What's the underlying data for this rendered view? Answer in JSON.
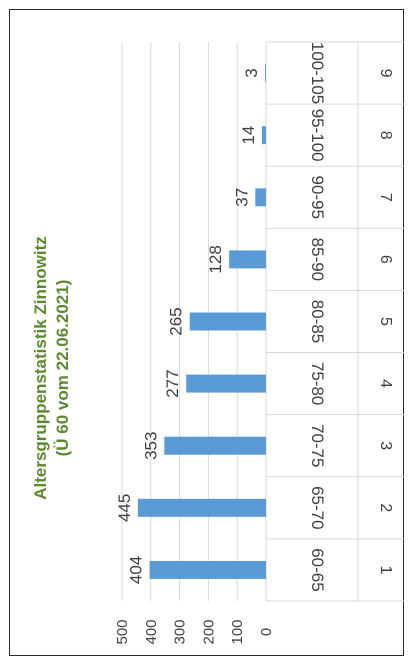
{
  "chart_data": {
    "type": "bar",
    "orientation": "rotated-90-clockwise",
    "title": "Altersgruppenstatistik Zinnowitz",
    "subtitle": "(Ü 60 vom 22.06.2021)",
    "row_numbers": [
      "1",
      "2",
      "3",
      "4",
      "5",
      "6",
      "7",
      "8",
      "9"
    ],
    "categories": [
      "60-65",
      "65-70",
      "70-75",
      "75-80",
      "80-85",
      "85-90",
      "90-95",
      "95-100",
      "100-105"
    ],
    "values": [
      404,
      445,
      353,
      277,
      265,
      128,
      37,
      14,
      3
    ],
    "data_labels": [
      "404",
      "445",
      "353",
      "277",
      "265",
      "128",
      "37",
      "14",
      "3"
    ],
    "y_ticks": [
      "0",
      "100",
      "200",
      "300",
      "400",
      "500"
    ],
    "ylim": [
      0,
      500
    ],
    "grid": true,
    "colors": {
      "bar": "#5b9bd5",
      "title": "#5b8a2f",
      "grid": "#d9d9d9",
      "text": "#404040"
    }
  }
}
